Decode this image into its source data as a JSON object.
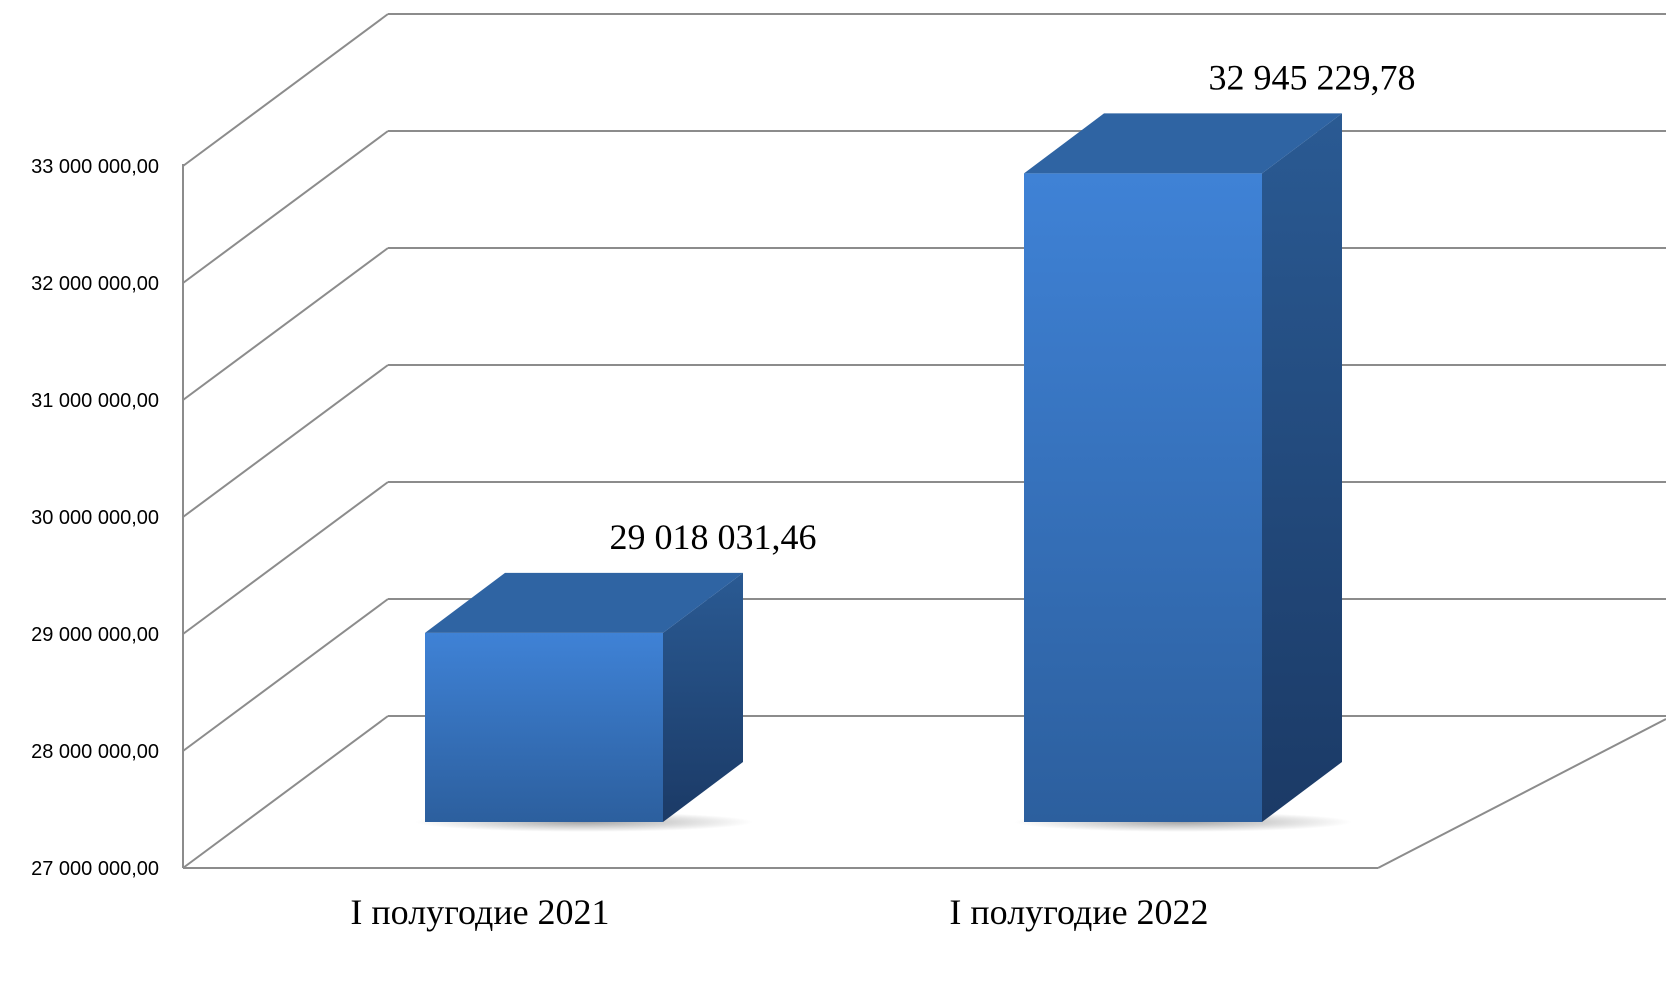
{
  "chart_data": {
    "type": "bar",
    "style": "3d-column",
    "categories": [
      "I полугодие 2021",
      "I полугодие 2022"
    ],
    "values": [
      29018031.46,
      32945229.78
    ],
    "data_labels": [
      "29 018 031,46",
      "32 945 229,78"
    ],
    "ylim": [
      27000000,
      33000000
    ],
    "y_ticks": [
      27000000,
      28000000,
      29000000,
      30000000,
      31000000,
      32000000,
      33000000
    ],
    "y_tick_labels": [
      "27 000 000,00",
      "28 000 000,00",
      "29 000 000,00",
      "30 000 000,00",
      "31 000 000,00",
      "32 000 000,00",
      "33 000 000,00"
    ],
    "grid": true,
    "legend": "none",
    "colors": {
      "front_top": "#3f82d6",
      "front_bottom": "#2c5f9e",
      "side_top": "#2a5a93",
      "side_bottom": "#1b3a66",
      "top": "#2f64a3",
      "grid": "#8c8c8c"
    }
  }
}
